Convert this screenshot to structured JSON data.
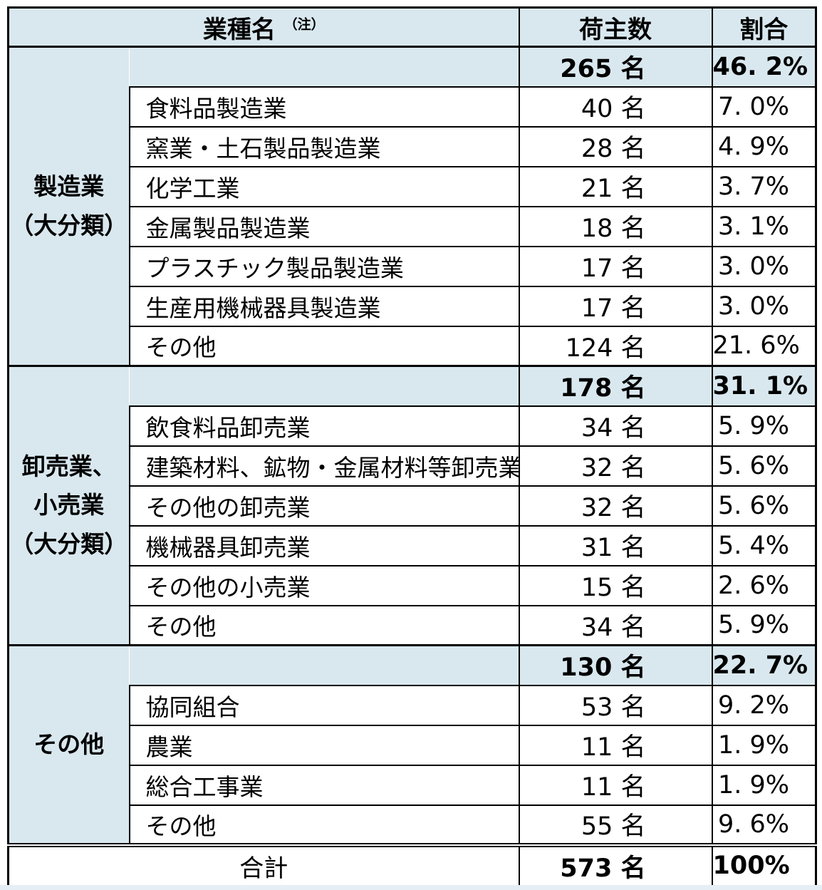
{
  "colors": {
    "highlight_blue": "#d9e8ef",
    "border_black": "#000000",
    "text_black": "#000000",
    "bottom_strip": "#e4eef4"
  },
  "table": {
    "header": {
      "industry_label": "業種名",
      "industry_note": "（注）",
      "shippers_label": "荷主数",
      "share_label": "割合"
    },
    "groups": [
      {
        "label_lines": [
          "製造業",
          "（大分類）"
        ],
        "subtotal": {
          "shippers": "265 名",
          "share": "46. 2%"
        },
        "rows": [
          {
            "name": "食料品製造業",
            "shippers": "40 名",
            "share": "7. 0%"
          },
          {
            "name": "窯業・土石製品製造業",
            "shippers": "28 名",
            "share": "4. 9%"
          },
          {
            "name": "化学工業",
            "shippers": "21 名",
            "share": "3. 7%"
          },
          {
            "name": "金属製品製造業",
            "shippers": "18 名",
            "share": "3. 1%"
          },
          {
            "name": "プラスチック製品製造業",
            "shippers": "17 名",
            "share": "3. 0%"
          },
          {
            "name": "生産用機械器具製造業",
            "shippers": "17 名",
            "share": "3. 0%"
          },
          {
            "name": "その他",
            "shippers": "124 名",
            "share": "21. 6%"
          }
        ]
      },
      {
        "label_lines": [
          "卸売業、",
          "小売業",
          "（大分類）"
        ],
        "subtotal": {
          "shippers": "178 名",
          "share": "31. 1%"
        },
        "rows": [
          {
            "name": "飲食料品卸売業",
            "shippers": "34 名",
            "share": "5. 9%"
          },
          {
            "name": "建築材料、鉱物・金属材料等卸売業",
            "shippers": "32 名",
            "share": "5. 6%"
          },
          {
            "name": "その他の卸売業",
            "shippers": "32 名",
            "share": "5. 6%"
          },
          {
            "name": "機械器具卸売業",
            "shippers": "31 名",
            "share": "5. 4%"
          },
          {
            "name": "その他の小売業",
            "shippers": "15 名",
            "share": "2. 6%"
          },
          {
            "name": "その他",
            "shippers": "34 名",
            "share": "5. 9%"
          }
        ]
      },
      {
        "label_lines": [
          "その他"
        ],
        "subtotal": {
          "shippers": "130 名",
          "share": "22. 7%"
        },
        "rows": [
          {
            "name": "協同組合",
            "shippers": "53 名",
            "share": "9. 2%"
          },
          {
            "name": "農業",
            "shippers": "11 名",
            "share": "1. 9%"
          },
          {
            "name": "総合工事業",
            "shippers": "11 名",
            "share": "1. 9%"
          },
          {
            "name": "その他",
            "shippers": "55 名",
            "share": "9. 6%"
          }
        ]
      }
    ],
    "total": {
      "label": "合計",
      "shippers": "573 名",
      "share": "100%"
    }
  }
}
